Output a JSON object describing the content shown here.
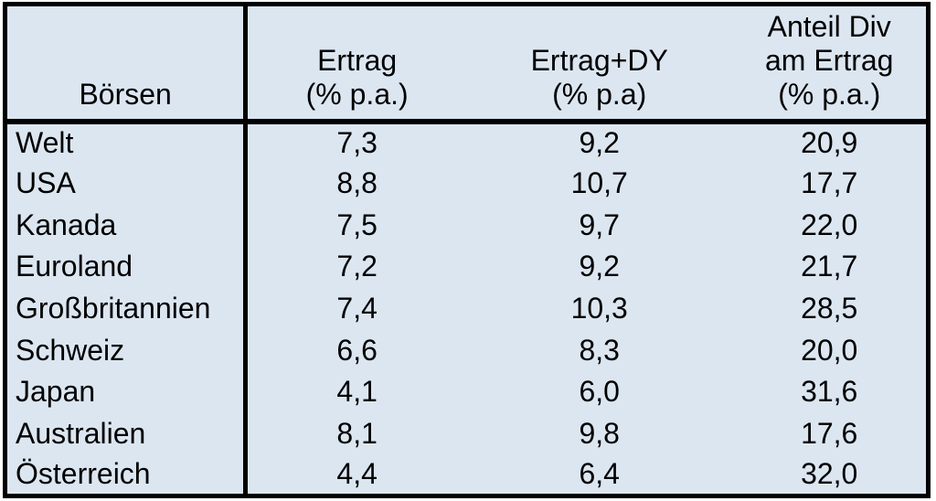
{
  "colors": {
    "cell_bg": "#dce6f1",
    "border": "#000000",
    "text": "#000000",
    "page_bg": "#ffffff"
  },
  "table": {
    "header": {
      "boersen": "Börsen",
      "ertrag": [
        "Ertrag",
        "(% p.a.)"
      ],
      "ertrag_dy": [
        "Ertrag+DY",
        "(% p.a)"
      ],
      "anteil_div": [
        "Anteil Div",
        "am Ertrag",
        "(% p.a.)"
      ]
    },
    "rows": [
      {
        "label": "Welt",
        "values": [
          "7,3",
          "9,2",
          "20,9"
        ]
      },
      {
        "label": "USA",
        "values": [
          "8,8",
          "10,7",
          "17,7"
        ]
      },
      {
        "label": "Kanada",
        "values": [
          "7,5",
          "9,7",
          "22,0"
        ]
      },
      {
        "label": "Euroland",
        "values": [
          "7,2",
          "9,2",
          "21,7"
        ]
      },
      {
        "label": "Großbritannien",
        "values": [
          "7,4",
          "10,3",
          "28,5"
        ]
      },
      {
        "label": "Schweiz",
        "values": [
          "6,6",
          "8,3",
          "20,0"
        ]
      },
      {
        "label": "Japan",
        "values": [
          "4,1",
          "6,0",
          "31,6"
        ]
      },
      {
        "label": "Australien",
        "values": [
          "8,1",
          "9,8",
          "17,6"
        ]
      },
      {
        "label": "Österreich",
        "values": [
          "4,4",
          "6,4",
          "32,0"
        ]
      }
    ]
  },
  "chart_data": {
    "type": "table",
    "title": "",
    "columns": [
      "Börsen",
      "Ertrag (% p.a.)",
      "Ertrag+DY (% p.a)",
      "Anteil Div am Ertrag (% p.a.)"
    ],
    "rows": [
      [
        "Welt",
        7.3,
        9.2,
        20.9
      ],
      [
        "USA",
        8.8,
        10.7,
        17.7
      ],
      [
        "Kanada",
        7.5,
        9.7,
        22.0
      ],
      [
        "Euroland",
        7.2,
        9.2,
        21.7
      ],
      [
        "Großbritannien",
        7.4,
        10.3,
        28.5
      ],
      [
        "Schweiz",
        6.6,
        8.3,
        20.0
      ],
      [
        "Japan",
        4.1,
        6.0,
        31.6
      ],
      [
        "Australien",
        8.1,
        9.8,
        17.6
      ],
      [
        "Österreich",
        4.4,
        6.4,
        32.0
      ]
    ]
  }
}
